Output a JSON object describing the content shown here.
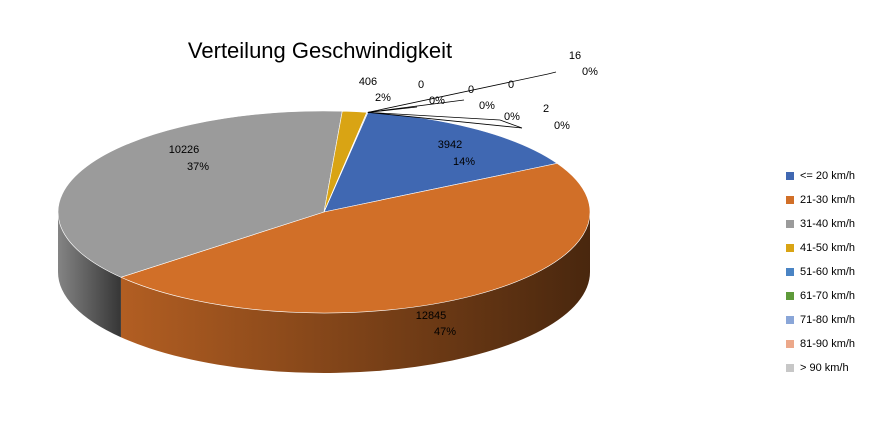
{
  "chart_data": {
    "type": "pie",
    "title": "Verteilung Geschwindigkeit",
    "categories": [
      "<= 20 km/h",
      "21-30 km/h",
      "31-40 km/h",
      "41-50 km/h",
      "51-60 km/h",
      "61-70 km/h",
      "71-80 km/h",
      "81-90 km/h",
      "> 90 km/h"
    ],
    "values": [
      3942,
      12845,
      10226,
      406,
      0,
      0,
      0,
      2,
      16
    ],
    "percent_labels": [
      "14%",
      "47%",
      "37%",
      "2%",
      "0%",
      "0%",
      "0%",
      "0%",
      "0%"
    ],
    "value_labels": [
      "3942",
      "12845",
      "10226",
      "406",
      "0",
      "0",
      "0",
      "2",
      "16"
    ],
    "colors": [
      "#4068b2",
      "#d16f28",
      "#9b9b9b",
      "#d9a414",
      "#4a84c4",
      "#5e9a3a",
      "#8aa6d8",
      "#eca88a",
      "#c7c7c7"
    ],
    "legend_position": "right",
    "style": "3d"
  }
}
